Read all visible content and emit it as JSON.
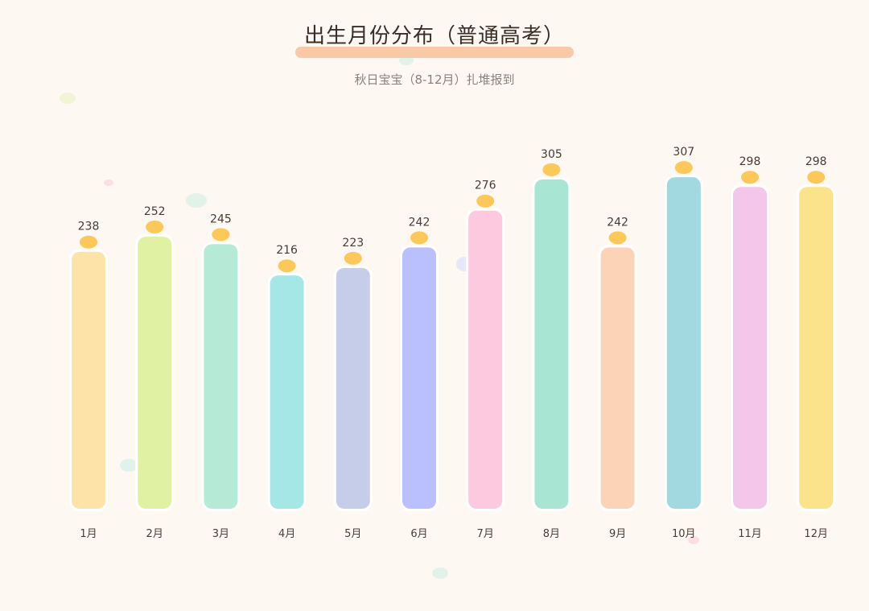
{
  "title": "出生月份分布（普通高考）",
  "subtitle": "秋日宝宝（8-12月）扎堆报到",
  "colors": {
    "background": "#fdf8f2",
    "title_underline": "#f9c8a6",
    "dot": "#fdc85a",
    "bars": [
      "#fde3a8",
      "#e1f1a4",
      "#b4ead6",
      "#a4e7e6",
      "#c6cde9",
      "#b9c0fd",
      "#fdc9df",
      "#a8e6d3",
      "#fdd3b8",
      "#a2d9e1",
      "#f4c6ea",
      "#fbe38b"
    ]
  },
  "chart_data": {
    "type": "bar",
    "title": "出生月份分布（普通高考）",
    "subtitle": "秋日宝宝（8-12月）扎堆报到",
    "categories": [
      "1月",
      "2月",
      "3月",
      "4月",
      "5月",
      "6月",
      "7月",
      "8月",
      "9月",
      "10月",
      "11月",
      "12月"
    ],
    "values": [
      238,
      252,
      245,
      216,
      223,
      242,
      276,
      305,
      242,
      307,
      298,
      298
    ],
    "xlabel": "",
    "ylabel": "",
    "grid": false,
    "legend": "none"
  }
}
